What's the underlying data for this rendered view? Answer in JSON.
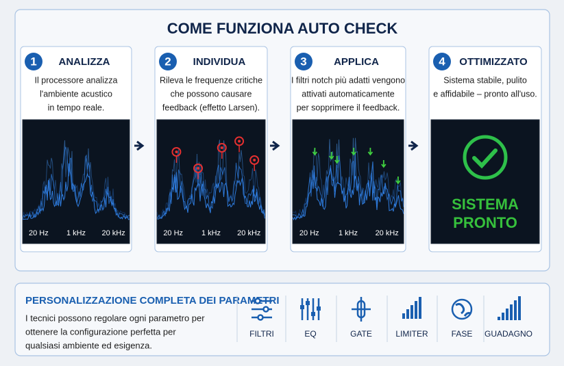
{
  "title": "COME FUNZIONA AUTO CHECK",
  "steps": [
    {
      "number": "1",
      "title": "ANALIZZA",
      "lines": [
        "Il processore analizza",
        "l'ambiente acustico",
        "in tempo reale."
      ],
      "axis_labels": [
        "20 Hz",
        "1 kHz",
        "20 kHz"
      ]
    },
    {
      "number": "2",
      "title": "INDIVIDUA",
      "lines": [
        "Rileva le frequenze critiche",
        "che possono causare",
        "feedback (effetto Larsen)."
      ],
      "axis_labels": [
        "20 Hz",
        "1 kHz",
        "20 kHz"
      ]
    },
    {
      "number": "3",
      "title": "APPLICA",
      "lines": [
        "I filtri notch più adatti vengono",
        "attivati automaticamente",
        "per sopprimere il feedback."
      ],
      "axis_labels": [
        "20 Hz",
        "1 kHz",
        "20 kHz"
      ]
    },
    {
      "number": "4",
      "title": "OTTIMIZZATO",
      "lines": [
        "Sistema stabile, pulito",
        "e affidabile – pronto all'uso."
      ],
      "status": [
        "SISTEMA",
        "PRONTO"
      ]
    }
  ],
  "customization": {
    "title": "PERSONALIZZAZIONE COMPLETA DEI PARAMETRI",
    "lines": [
      "I tecnici possono regolare ogni parametro per",
      "ottenere la configurazione perfetta per",
      "qualsiasi ambiente ed esigenza."
    ],
    "controls": [
      "FILTRI",
      "EQ",
      "GATE",
      "LIMITER",
      "FASE",
      "GUADAGNO"
    ]
  }
}
